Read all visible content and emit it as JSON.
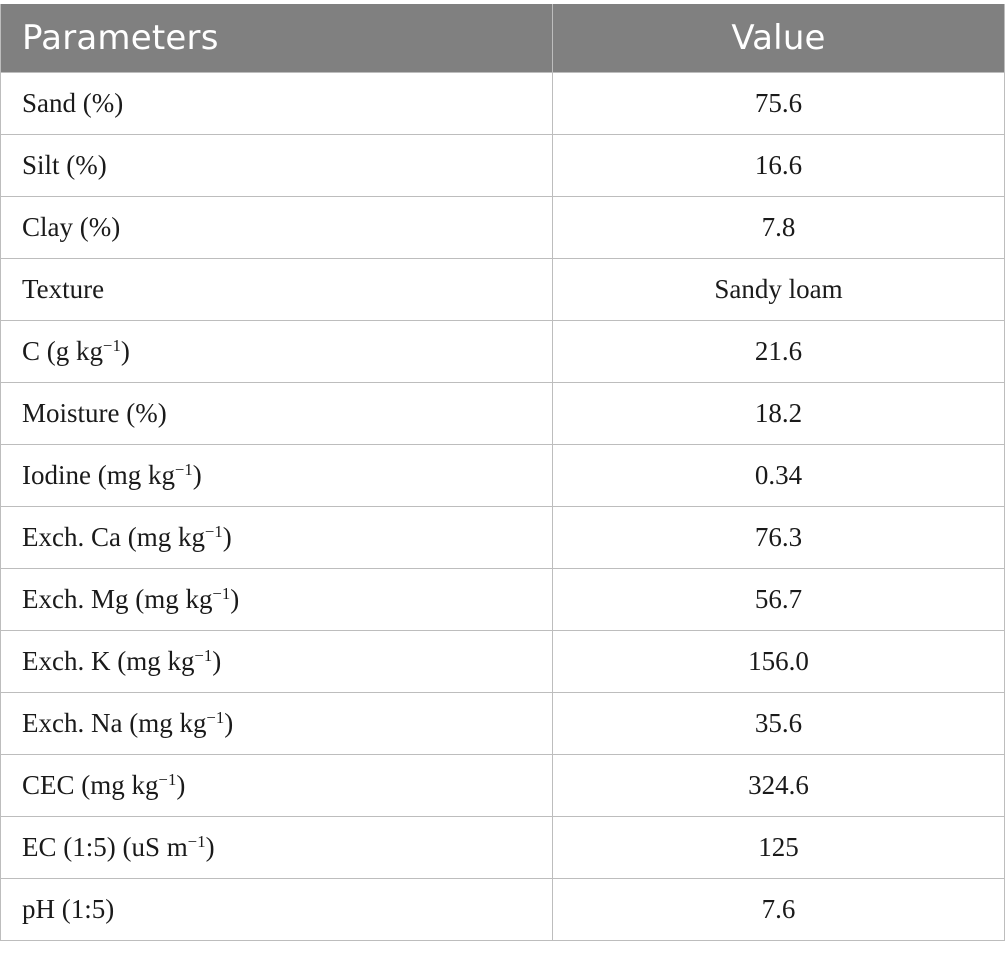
{
  "table": {
    "headers": [
      "Parameters",
      "Value"
    ],
    "rows": [
      {
        "parameter": "Sand (%)",
        "value": "75.6"
      },
      {
        "parameter": "Silt (%)",
        "value": "16.6"
      },
      {
        "parameter": "Clay (%)",
        "value": "7.8"
      },
      {
        "parameter": "Texture",
        "value": "Sandy loam"
      },
      {
        "parameter": "C (g kg−1)",
        "value": "21.6"
      },
      {
        "parameter": "Moisture (%)",
        "value": "18.2"
      },
      {
        "parameter": "Iodine (mg kg−1)",
        "value": "0.34"
      },
      {
        "parameter": "Exch. Ca (mg kg−1)",
        "value": "76.3"
      },
      {
        "parameter": "Exch. Mg (mg kg−1)",
        "value": "56.7"
      },
      {
        "parameter": "Exch. K (mg kg−1)",
        "value": "156.0"
      },
      {
        "parameter": "Exch. Na (mg kg−1)",
        "value": "35.6"
      },
      {
        "parameter": "CEC (mg kg−1)",
        "value": "324.6"
      },
      {
        "parameter": "EC (1:5) (uS m−1)",
        "value": "125"
      },
      {
        "parameter": "pH (1:5)",
        "value": "7.6"
      }
    ]
  }
}
